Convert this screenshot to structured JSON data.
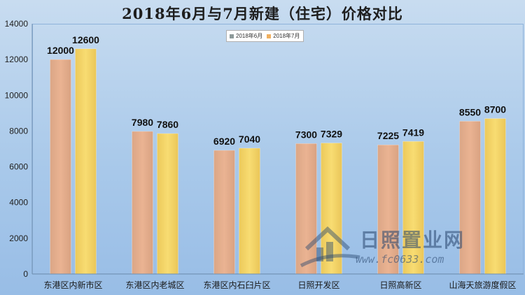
{
  "chart_data": {
    "type": "bar",
    "title": "2018年6月与7月新建（住宅）价格对比",
    "categories": [
      "东港区内新市区",
      "东港区内老城区",
      "东港区内石臼片区",
      "日照开发区",
      "日照高新区",
      "山海天旅游度假区"
    ],
    "series": [
      {
        "name": "2018年6月",
        "values": [
          12000,
          7980,
          6920,
          7300,
          7225,
          8550
        ],
        "color": "#e8b08a"
      },
      {
        "name": "2018年7月",
        "values": [
          12600,
          7860,
          7040,
          7329,
          7419,
          8700
        ],
        "color": "#f6d66a"
      }
    ],
    "legend_swatch_colors": [
      "#8d9a9a",
      "#f0b060"
    ],
    "ylim": [
      0,
      14000
    ],
    "yticks": [
      0,
      2000,
      4000,
      6000,
      8000,
      10000,
      12000,
      14000
    ],
    "xlabel": "",
    "ylabel": "",
    "legend_position": "top-center",
    "grid": false
  },
  "watermark": {
    "text": "日照置业网",
    "url": "www.fc0633.com"
  }
}
